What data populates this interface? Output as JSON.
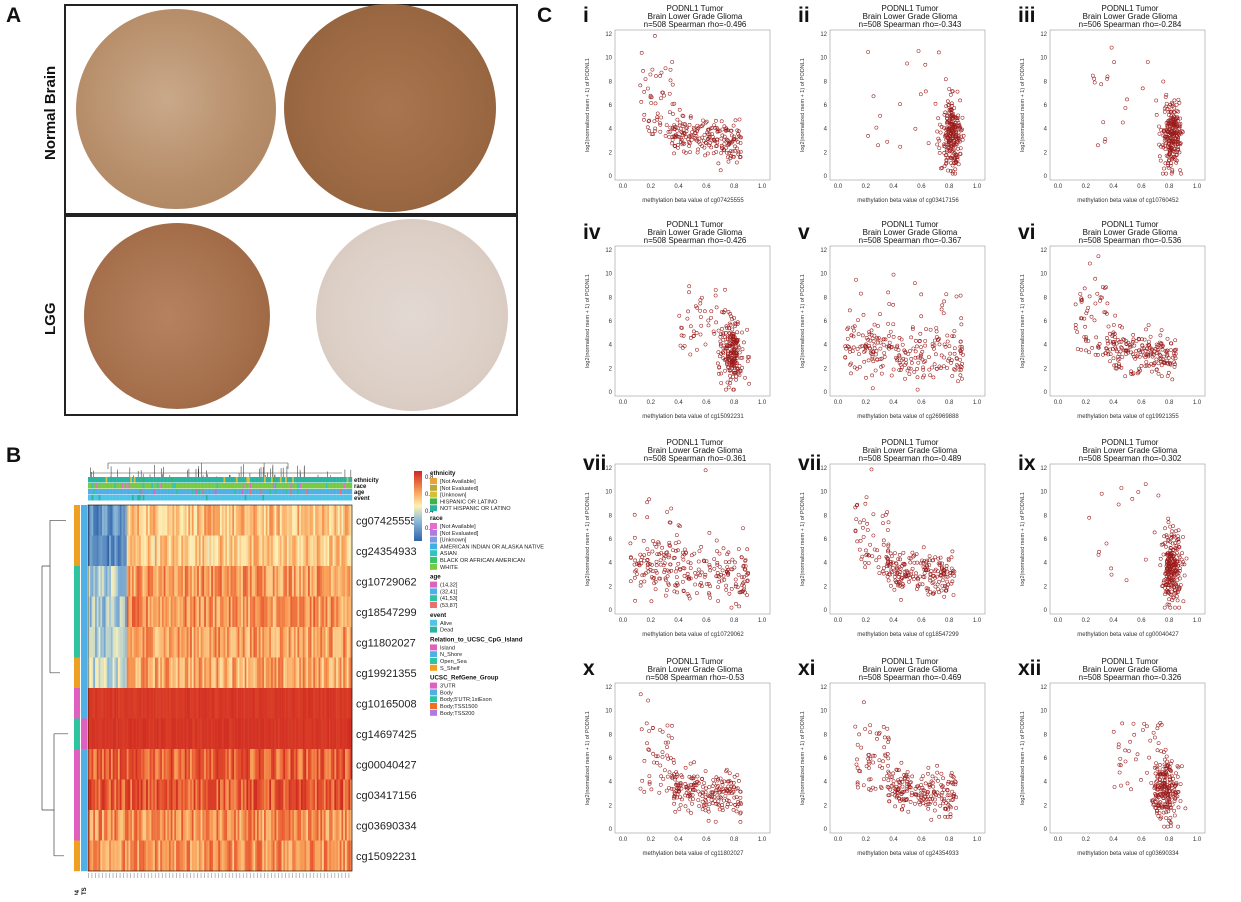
{
  "panel_labels": {
    "a": "A",
    "b": "B",
    "c": "C"
  },
  "panel_a": {
    "row_labels": [
      "Normal Brain",
      "LGG"
    ]
  },
  "panel_b": {
    "legend_tracks": [
      "ethnicity",
      "race",
      "age",
      "event"
    ],
    "probes": [
      "cg07425555",
      "cg24354933",
      "cg10729062",
      "cg18547299",
      "cg11802027",
      "cg19921355",
      "cg10165008",
      "cg14697425",
      "cg00040427",
      "cg03417156",
      "cg03690334",
      "cg15092231"
    ],
    "colorbar_ticks": [
      "0.8",
      "0.6",
      "0.4",
      "0.2"
    ],
    "legend": [
      {
        "title": "ethnicity",
        "items": [
          {
            "label": "[Not Available]",
            "color": "#e8a33c"
          },
          {
            "label": "[Not Evaluated]",
            "color": "#b9a93a"
          },
          {
            "label": "[Unknown]",
            "color": "#d4c032"
          },
          {
            "label": "HISPANIC OR LATINO",
            "color": "#39b54a"
          },
          {
            "label": "NOT HISPANIC OR LATINO",
            "color": "#2bb3a0"
          }
        ]
      },
      {
        "title": "race",
        "items": [
          {
            "label": "[Not Available]",
            "color": "#e86bd0"
          },
          {
            "label": "[Not Evaluated]",
            "color": "#b07be0"
          },
          {
            "label": "[Unknown]",
            "color": "#7a9be0"
          },
          {
            "label": "AMERICAN INDIAN OR ALASKA NATIVE",
            "color": "#3fb0e0"
          },
          {
            "label": "ASIAN",
            "color": "#2ec4c0"
          },
          {
            "label": "BLACK OR AFRICAN AMERICAN",
            "color": "#3cc46a"
          },
          {
            "label": "WHITE",
            "color": "#7ac943"
          }
        ]
      },
      {
        "title": "age",
        "items": [
          {
            "label": "(14,32]",
            "color": "#e060c0"
          },
          {
            "label": "(32,41]",
            "color": "#4fb0e8"
          },
          {
            "label": "(41,53]",
            "color": "#2ec4a0"
          },
          {
            "label": "(53,87]",
            "color": "#e87070"
          }
        ]
      },
      {
        "title": "event",
        "items": [
          {
            "label": "Alive",
            "color": "#4fc3e8"
          },
          {
            "label": "Dead",
            "color": "#2bb3a0"
          }
        ]
      },
      {
        "title": "Relation_to_UCSC_CpG_Island",
        "items": [
          {
            "label": "Island",
            "color": "#e060c0"
          },
          {
            "label": "N_Shore",
            "color": "#4fb0e8"
          },
          {
            "label": "Open_Sea",
            "color": "#2ec4a0"
          },
          {
            "label": "S_Shelf",
            "color": "#f0a020"
          }
        ]
      },
      {
        "title": "UCSC_RefGene_Group",
        "items": [
          {
            "label": "3'UTR",
            "color": "#e060c0"
          },
          {
            "label": "Body",
            "color": "#4fb0e8"
          },
          {
            "label": "Body;5'UTR;1stExon",
            "color": "#2ec4a0"
          },
          {
            "label": "Body;TSS1500",
            "color": "#f07020"
          },
          {
            "label": "Body;TSS200",
            "color": "#b07be0"
          }
        ]
      }
    ],
    "bottom_labels": [
      "IP4",
      "STS"
    ]
  },
  "panel_c": {
    "gene": "PODNL1",
    "group": "Tumor",
    "cancer": "Brain Lower Grade Glioma",
    "ylabel": "log2(normalized rsem + 1) of PODNL1",
    "plots": [
      {
        "roman": "i",
        "n": "n=508",
        "rho": "Spearman rho=-0.496",
        "probe": "methylation beta value of cg07425555",
        "xticks": [
          "0.0",
          "0.2",
          "0.4",
          "0.6",
          "0.8",
          "1.0"
        ],
        "yticks": [
          "0",
          "2",
          "4",
          "6",
          "8",
          "10",
          "12"
        ],
        "pattern": "left"
      },
      {
        "roman": "ii",
        "n": "n=508",
        "rho": "Spearman rho=-0.343",
        "probe": "methylation beta value of cg03417156",
        "xticks": [
          "0.0",
          "0.2",
          "0.4",
          "0.6",
          "0.8",
          "1.0"
        ],
        "yticks": [
          "0",
          "2",
          "4",
          "6",
          "8",
          "10",
          "12"
        ],
        "pattern": "right"
      },
      {
        "roman": "iii",
        "n": "n=506",
        "rho": "Spearman rho=-0.284",
        "probe": "methylation beta value of cg10760452",
        "xticks": [
          "0.0",
          "0.2",
          "0.4",
          "0.6",
          "0.8",
          "1.0"
        ],
        "yticks": [
          "0",
          "2",
          "4",
          "6",
          "8",
          "10",
          "12"
        ],
        "pattern": "right"
      },
      {
        "roman": "iv",
        "n": "n=508",
        "rho": "Spearman rho=-0.426",
        "probe": "methylation beta value of cg15092231",
        "xticks": [
          "0.0",
          "0.2",
          "0.4",
          "0.6",
          "0.8",
          "1.0"
        ],
        "yticks": [
          "0",
          "2",
          "4",
          "6",
          "8",
          "10",
          "12"
        ],
        "pattern": "right2"
      },
      {
        "roman": "v",
        "n": "n=508",
        "rho": "Spearman rho=-0.367",
        "probe": "methylation beta value of cg26969888",
        "xticks": [
          "0.0",
          "0.2",
          "0.4",
          "0.6",
          "0.8",
          "1.0"
        ],
        "yticks": [
          "0",
          "2",
          "4",
          "6",
          "8",
          "10",
          "12"
        ],
        "pattern": "spread"
      },
      {
        "roman": "vi",
        "n": "n=508",
        "rho": "Spearman rho=-0.536",
        "probe": "methylation beta value of cg19921355",
        "xticks": [
          "0.0",
          "0.2",
          "0.4",
          "0.6",
          "0.8",
          "1.0"
        ],
        "yticks": [
          "0",
          "2",
          "4",
          "6",
          "8",
          "10",
          "12"
        ],
        "pattern": "left"
      },
      {
        "roman": "vii",
        "n": "n=508",
        "rho": "Spearman rho=-0.361",
        "probe": "methylation beta value of cg10729062",
        "xticks": [
          "0.0",
          "0.2",
          "0.4",
          "0.6",
          "0.8",
          "1.0"
        ],
        "yticks": [
          "0",
          "2",
          "4",
          "6",
          "8",
          "10",
          "12"
        ],
        "pattern": "spread"
      },
      {
        "roman": "vii",
        "n": "n=508",
        "rho": "Spearman rho=-0.489",
        "probe": "methylation beta value of cg18547299",
        "xticks": [
          "0.0",
          "0.2",
          "0.4",
          "0.6",
          "0.8",
          "1.0"
        ],
        "yticks": [
          "0",
          "2",
          "4",
          "6",
          "8",
          "10",
          "12"
        ],
        "pattern": "left"
      },
      {
        "roman": "ix",
        "n": "n=508",
        "rho": "Spearman rho=-0.302",
        "probe": "methylation beta value of cg00040427",
        "xticks": [
          "0.0",
          "0.2",
          "0.4",
          "0.6",
          "0.8",
          "1.0"
        ],
        "yticks": [
          "0",
          "2",
          "4",
          "6",
          "8",
          "10",
          "12"
        ],
        "pattern": "right"
      },
      {
        "roman": "x",
        "n": "n=508",
        "rho": "Spearman rho=-0.53",
        "probe": "methylation beta value of cg11802027",
        "xticks": [
          "0.0",
          "0.2",
          "0.4",
          "0.6",
          "0.8",
          "1.0"
        ],
        "yticks": [
          "0",
          "2",
          "4",
          "6",
          "8",
          "10",
          "12"
        ],
        "pattern": "left"
      },
      {
        "roman": "xi",
        "n": "n=508",
        "rho": "Spearman rho=-0.469",
        "probe": "methylation beta value of cg24354933",
        "xticks": [
          "0.0",
          "0.2",
          "0.4",
          "0.6",
          "0.8",
          "1.0"
        ],
        "yticks": [
          "0",
          "2",
          "4",
          "6",
          "8",
          "10",
          "12"
        ],
        "pattern": "left"
      },
      {
        "roman": "xii",
        "n": "n=508",
        "rho": "Spearman rho=-0.326",
        "probe": "methylation beta value of cg03690334",
        "xticks": [
          "0.0",
          "0.2",
          "0.4",
          "0.6",
          "0.8",
          "1.0"
        ],
        "yticks": [
          "0",
          "2",
          "4",
          "6",
          "8",
          "10",
          "12"
        ],
        "pattern": "right2"
      }
    ]
  },
  "chart_data": [
    {
      "type": "scatter",
      "title": "PODNL1 Tumor Brain Lower Grade Glioma",
      "n": 508,
      "spearman_rho": -0.496,
      "xlabel": "methylation beta value of cg07425555",
      "ylabel": "log2(normalized rsem + 1) of PODNL1",
      "xlim": [
        0,
        1
      ],
      "ylim": [
        0,
        12
      ]
    },
    {
      "type": "scatter",
      "title": "PODNL1 Tumor Brain Lower Grade Glioma",
      "n": 508,
      "spearman_rho": -0.343,
      "xlabel": "methylation beta value of cg03417156",
      "ylabel": "log2(normalized rsem + 1) of PODNL1",
      "xlim": [
        0,
        1
      ],
      "ylim": [
        0,
        12
      ]
    },
    {
      "type": "scatter",
      "title": "PODNL1 Tumor Brain Lower Grade Glioma",
      "n": 506,
      "spearman_rho": -0.284,
      "xlabel": "methylation beta value of cg10760452",
      "ylabel": "log2(normalized rsem + 1) of PODNL1",
      "xlim": [
        0,
        1
      ],
      "ylim": [
        0,
        12
      ]
    },
    {
      "type": "scatter",
      "title": "PODNL1 Tumor Brain Lower Grade Glioma",
      "n": 508,
      "spearman_rho": -0.426,
      "xlabel": "methylation beta value of cg15092231",
      "ylabel": "log2(normalized rsem + 1) of PODNL1",
      "xlim": [
        0,
        1
      ],
      "ylim": [
        0,
        12
      ]
    },
    {
      "type": "scatter",
      "title": "PODNL1 Tumor Brain Lower Grade Glioma",
      "n": 508,
      "spearman_rho": -0.367,
      "xlabel": "methylation beta value of cg26969888",
      "ylabel": "log2(normalized rsem + 1) of PODNL1",
      "xlim": [
        0,
        1
      ],
      "ylim": [
        0,
        12
      ]
    },
    {
      "type": "scatter",
      "title": "PODNL1 Tumor Brain Lower Grade Glioma",
      "n": 508,
      "spearman_rho": -0.536,
      "xlabel": "methylation beta value of cg19921355",
      "ylabel": "log2(normalized rsem + 1) of PODNL1",
      "xlim": [
        0,
        1
      ],
      "ylim": [
        0,
        12
      ]
    },
    {
      "type": "scatter",
      "title": "PODNL1 Tumor Brain Lower Grade Glioma",
      "n": 508,
      "spearman_rho": -0.361,
      "xlabel": "methylation beta value of cg10729062",
      "ylabel": "log2(normalized rsem + 1) of PODNL1",
      "xlim": [
        0,
        1
      ],
      "ylim": [
        0,
        12
      ]
    },
    {
      "type": "scatter",
      "title": "PODNL1 Tumor Brain Lower Grade Glioma",
      "n": 508,
      "spearman_rho": -0.489,
      "xlabel": "methylation beta value of cg18547299",
      "ylabel": "log2(normalized rsem + 1) of PODNL1",
      "xlim": [
        0,
        1
      ],
      "ylim": [
        0,
        12
      ]
    },
    {
      "type": "scatter",
      "title": "PODNL1 Tumor Brain Lower Grade Glioma",
      "n": 508,
      "spearman_rho": -0.302,
      "xlabel": "methylation beta value of cg00040427",
      "ylabel": "log2(normalized rsem + 1) of PODNL1",
      "xlim": [
        0,
        1
      ],
      "ylim": [
        0,
        12
      ]
    },
    {
      "type": "scatter",
      "title": "PODNL1 Tumor Brain Lower Grade Glioma",
      "n": 508,
      "spearman_rho": -0.53,
      "xlabel": "methylation beta value of cg11802027",
      "ylabel": "log2(normalized rsem + 1) of PODNL1",
      "xlim": [
        0,
        1
      ],
      "ylim": [
        0,
        12
      ]
    },
    {
      "type": "scatter",
      "title": "PODNL1 Tumor Brain Lower Grade Glioma",
      "n": 508,
      "spearman_rho": -0.469,
      "xlabel": "methylation beta value of cg24354933",
      "ylabel": "log2(normalized rsem + 1) of PODNL1",
      "xlim": [
        0,
        1
      ],
      "ylim": [
        0,
        12
      ]
    },
    {
      "type": "scatter",
      "title": "PODNL1 Tumor Brain Lower Grade Glioma",
      "n": 508,
      "spearman_rho": -0.326,
      "xlabel": "methylation beta value of cg03690334",
      "ylabel": "log2(normalized rsem + 1) of PODNL1",
      "xlim": [
        0,
        1
      ],
      "ylim": [
        0,
        12
      ]
    }
  ]
}
